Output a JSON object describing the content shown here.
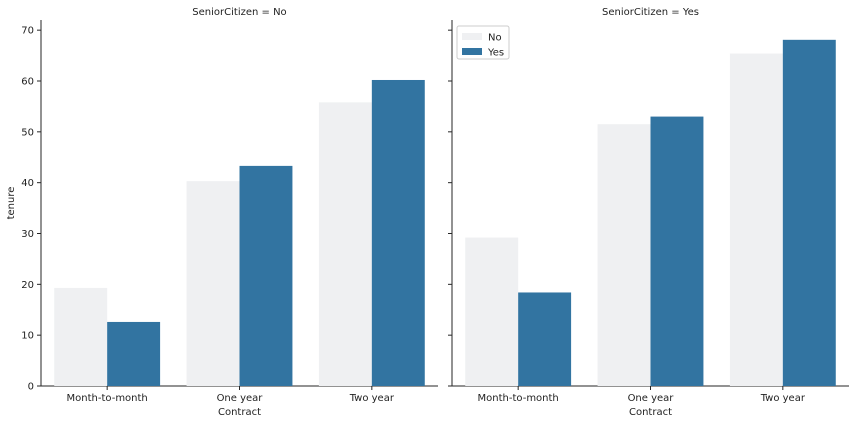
{
  "chart_data": {
    "type": "bar",
    "ylabel": "tenure",
    "xlabel": "Contract",
    "ylim": [
      0,
      72
    ],
    "yticks": [
      0,
      10,
      20,
      30,
      40,
      50,
      60,
      70
    ],
    "categories": [
      "Month-to-month",
      "One year",
      "Two year"
    ],
    "legend": {
      "placement": "top-left of second panel",
      "entries": [
        "No",
        "Yes"
      ]
    },
    "grid": false,
    "colors": {
      "No": "#eff0f2",
      "Yes": "#3274a1"
    },
    "panels": [
      {
        "title": "SeniorCitizen = No",
        "series": [
          {
            "name": "No",
            "values": [
              19.3,
              40.3,
              55.8
            ]
          },
          {
            "name": "Yes",
            "values": [
              12.6,
              43.3,
              60.2
            ]
          }
        ]
      },
      {
        "title": "SeniorCitizen = Yes",
        "series": [
          {
            "name": "No",
            "values": [
              29.2,
              51.5,
              65.4
            ]
          },
          {
            "name": "Yes",
            "values": [
              18.4,
              53.0,
              68.1
            ]
          }
        ]
      }
    ]
  }
}
